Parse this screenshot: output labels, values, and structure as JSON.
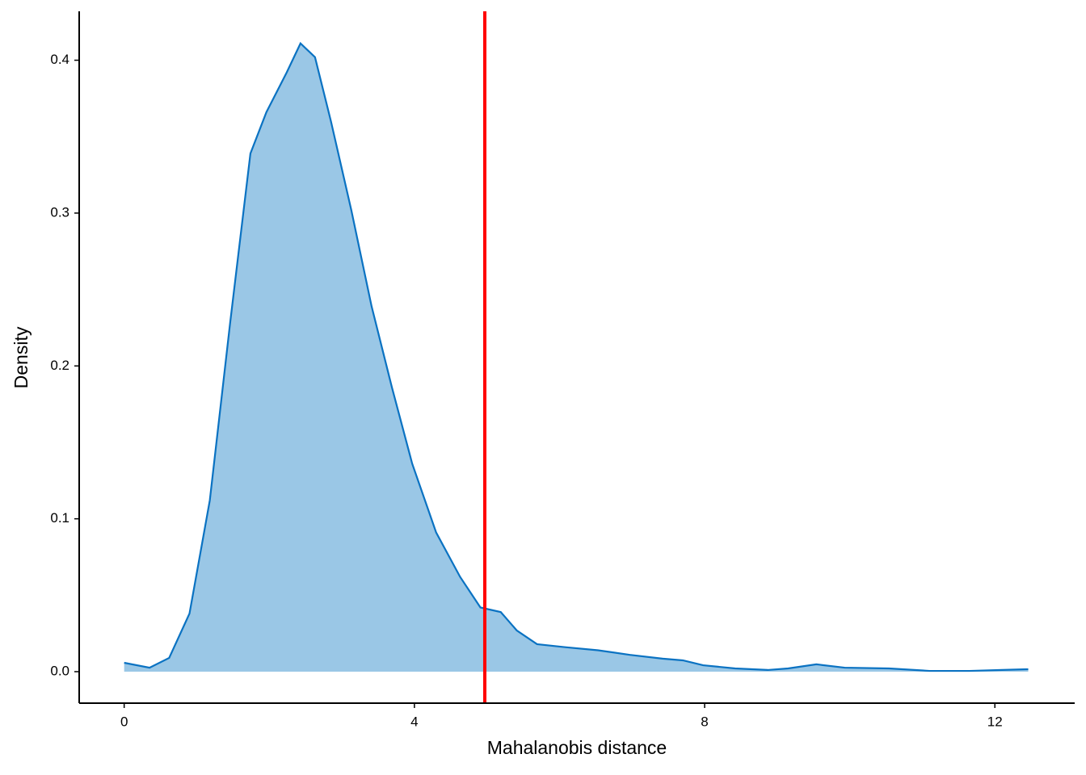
{
  "chart_data": {
    "type": "density",
    "x_label": "Mahalanobis distance",
    "y_label": "Density",
    "x": [
      0,
      0.35,
      0.62,
      0.9,
      1.18,
      1.46,
      1.74,
      1.96,
      2.24,
      2.43,
      2.63,
      2.85,
      3.13,
      3.41,
      3.69,
      3.97,
      4.3,
      4.63,
      4.91,
      5.19,
      5.41,
      5.69,
      6.08,
      6.53,
      6.97,
      7.42,
      7.7,
      7.98,
      8.42,
      8.87,
      9.15,
      9.54,
      9.93,
      10.54,
      11.1,
      11.65,
      12.1,
      12.46
    ],
    "values": [
      0.0058,
      0.0026,
      0.009,
      0.038,
      0.112,
      0.228,
      0.339,
      0.366,
      0.392,
      0.411,
      0.402,
      0.36,
      0.302,
      0.239,
      0.186,
      0.136,
      0.091,
      0.062,
      0.042,
      0.039,
      0.027,
      0.018,
      0.016,
      0.014,
      0.011,
      0.0085,
      0.0074,
      0.0042,
      0.0021,
      0.0011,
      0.0021,
      0.0048,
      0.0026,
      0.0021,
      0.0005,
      0.0005,
      0.0011,
      0.0016
    ],
    "color": "#0a72c2",
    "fill_color": "#9ac7e6",
    "vline": {
      "x": 4.97,
      "color": "#ff0000"
    },
    "xlim": [
      -0.62,
      13.1
    ],
    "ylim": [
      -0.0206,
      0.432
    ],
    "xticks": [
      0,
      4,
      8,
      12
    ],
    "yticks": [
      {
        "value": 0,
        "label": "0.0"
      },
      0.1,
      0.2,
      0.3,
      0.4
    ]
  }
}
